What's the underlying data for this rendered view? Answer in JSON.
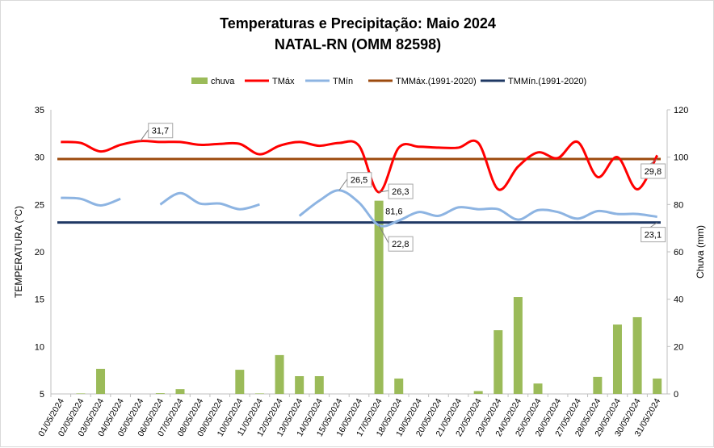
{
  "chart_data": {
    "type": "bar+line",
    "title": "Temperaturas e Precipitação: Maio 2024",
    "subtitle": "NATAL-RN (OMM 82598)",
    "ylabel": "TEMPERATURA (°C)",
    "y2label": "Chuva (mm)",
    "ylim": [
      5,
      35
    ],
    "y2lim": [
      0,
      120
    ],
    "yticks": [
      "5",
      "10",
      "15",
      "20",
      "25",
      "30",
      "35"
    ],
    "y2ticks": [
      "0",
      "20",
      "40",
      "60",
      "80",
      "100",
      "120"
    ],
    "categories": [
      "01/05/2024",
      "02/05/2024",
      "03/05/2024",
      "04/05/2024",
      "05/05/2024",
      "06/05/2024",
      "07/05/2024",
      "08/05/2024",
      "09/05/2024",
      "10/05/2024",
      "11/05/2024",
      "12/05/2024",
      "13/05/2024",
      "14/05/2024",
      "15/05/2024",
      "16/05/2024",
      "17/05/2024",
      "18/05/2024",
      "19/05/2024",
      "20/05/2024",
      "21/05/2024",
      "22/05/2024",
      "23/05/2024",
      "24/05/2024",
      "25/05/2024",
      "26/05/2024",
      "27/05/2024",
      "28/05/2024",
      "29/05/2024",
      "30/05/2024",
      "31/05/2024"
    ],
    "legend": [
      "chuva",
      "TMáx",
      "TMín",
      "TMMáx.(1991-2020)",
      "TMMín.(1991-2020)"
    ],
    "legend_position": "top",
    "series": [
      {
        "name": "chuva",
        "axis": "right",
        "type": "bar",
        "color": "#9bbb59",
        "values": [
          0,
          0.2,
          10.6,
          0,
          0,
          0.3,
          2,
          0,
          0,
          10.2,
          0.2,
          16.4,
          7.5,
          7.5,
          0,
          0,
          81.6,
          6.5,
          0,
          0,
          0,
          1.2,
          26.9,
          40.9,
          4.4,
          0,
          0,
          7.2,
          29.3,
          32.4,
          6.5
        ]
      },
      {
        "name": "TMáx",
        "axis": "left",
        "type": "line",
        "color": "#ff0000",
        "values": [
          31.6,
          31.5,
          30.6,
          31.3,
          31.7,
          31.6,
          31.6,
          31.3,
          31.4,
          31.4,
          30.3,
          31.2,
          31.6,
          31.2,
          31.5,
          31.2,
          26.3,
          31.0,
          31.1,
          31.0,
          31.0,
          31.5,
          26.6,
          29.0,
          30.5,
          29.9,
          31.6,
          27.9,
          30.0,
          26.6,
          30.2
        ]
      },
      {
        "name": "TMín",
        "axis": "left",
        "type": "line",
        "color": "#8db4e2",
        "values": [
          25.7,
          25.6,
          24.9,
          25.6,
          null,
          25.0,
          26.2,
          25.1,
          25.1,
          24.5,
          25.0,
          null,
          23.8,
          25.4,
          26.5,
          25.2,
          22.8,
          23.3,
          24.2,
          23.8,
          24.7,
          24.5,
          24.5,
          23.4,
          24.4,
          24.2,
          23.5,
          24.3,
          24.0,
          24.0,
          23.7
        ]
      },
      {
        "name": "TMMáx.(1991-2020)",
        "axis": "left",
        "type": "line",
        "color": "#9c4a0e",
        "value": 29.8
      },
      {
        "name": "TMMín.(1991-2020)",
        "axis": "left",
        "type": "line",
        "color": "#1f3864",
        "value": 23.1
      }
    ],
    "annotations": [
      "31,7",
      "26,5",
      "26,3",
      "81,6",
      "22,8",
      "29,8",
      "23,1"
    ]
  }
}
